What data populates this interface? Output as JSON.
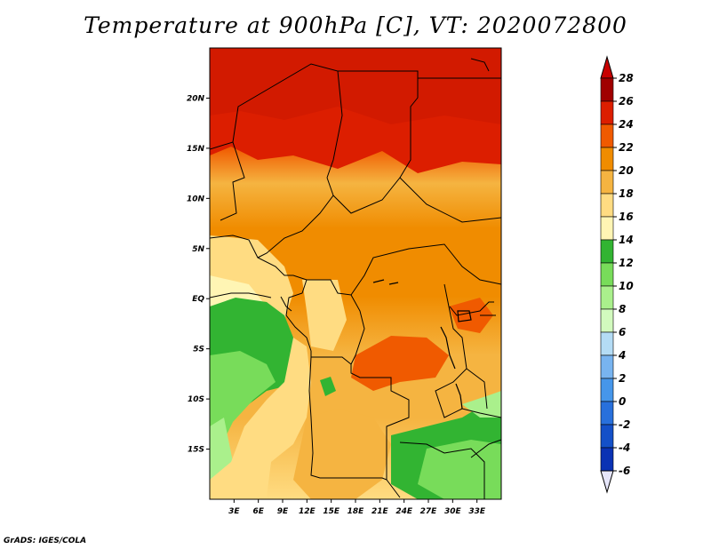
{
  "title": "Temperature at 900hPa [C], VT: 2020072800",
  "footer": "GrADS: IGES/COLA",
  "map": {
    "lon_range": [
      0,
      36
    ],
    "lat_range": [
      -20,
      25
    ],
    "lon_ticks": [
      "3E",
      "6E",
      "9E",
      "12E",
      "15E",
      "18E",
      "21E",
      "24E",
      "27E",
      "30E",
      "33E"
    ],
    "lat_ticks": [
      "20N",
      "15N",
      "10N",
      "5N",
      "EQ",
      "5S",
      "10S",
      "15S"
    ]
  },
  "colorbar": {
    "labels": [
      "28",
      "26",
      "24",
      "22",
      "20",
      "18",
      "16",
      "14",
      "12",
      "10",
      "8",
      "6",
      "4",
      "2",
      "0",
      "-2",
      "-4",
      "-6"
    ],
    "colors": [
      "#a00000",
      "#dc1e00",
      "#f05a00",
      "#f08c00",
      "#f5b441",
      "#ffdc82",
      "#fff5b4",
      "#32b432",
      "#78dc5a",
      "#aaf08c",
      "#d2fabe",
      "#b4dcf5",
      "#78b4f0",
      "#4696ea",
      "#2870dc",
      "#1450c8",
      "#0a32b4",
      "#050a6e"
    ],
    "top_color": "#c80000",
    "bottom_color": "#e6e6fa"
  }
}
